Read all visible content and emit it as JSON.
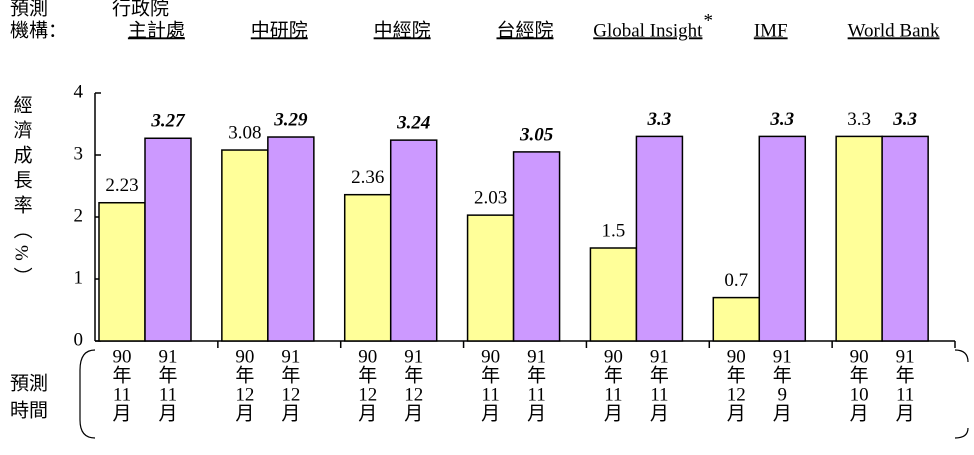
{
  "chart_data": {
    "type": "bar",
    "header": [
      "預測",
      "機構："
    ],
    "annotations": [
      "行政院"
    ],
    "y_label": "經濟成長率（%）",
    "period_label": [
      "預測",
      "時間"
    ],
    "categories": [
      "主計處",
      "中研院",
      "中經院",
      "台經院",
      "Global Insight",
      "IMF",
      "World Bank"
    ],
    "category_marks": [
      null,
      null,
      null,
      null,
      "*",
      null,
      null
    ],
    "series": [
      {
        "color": "#ffff99",
        "values": [
          2.23,
          3.08,
          2.36,
          2.03,
          1.5,
          0.7,
          3.3
        ],
        "periods": [
          [
            "90",
            "年",
            "11",
            "月"
          ],
          [
            "90",
            "年",
            "12",
            "月"
          ],
          [
            "90",
            "年",
            "12",
            "月"
          ],
          [
            "90",
            "年",
            "11",
            "月"
          ],
          [
            "90",
            "年",
            "11",
            "月"
          ],
          [
            "90",
            "年",
            "12",
            "月"
          ],
          [
            "90",
            "年",
            "10",
            "月"
          ]
        ]
      },
      {
        "color": "#cc99ff",
        "values": [
          3.27,
          3.29,
          3.24,
          3.05,
          3.3,
          3.3,
          3.3
        ],
        "periods": [
          [
            "91",
            "年",
            "11",
            "月"
          ],
          [
            "91",
            "年",
            "12",
            "月"
          ],
          [
            "91",
            "年",
            "12",
            "月"
          ],
          [
            "91",
            "年",
            "11",
            "月"
          ],
          [
            "91",
            "年",
            "11",
            "月"
          ],
          [
            "91",
            "年",
            "9",
            "月"
          ],
          [
            "91",
            "年",
            "11",
            "月"
          ]
        ]
      }
    ],
    "ylim": [
      0,
      4
    ],
    "yticks": [
      0,
      1,
      2,
      3,
      4
    ]
  }
}
